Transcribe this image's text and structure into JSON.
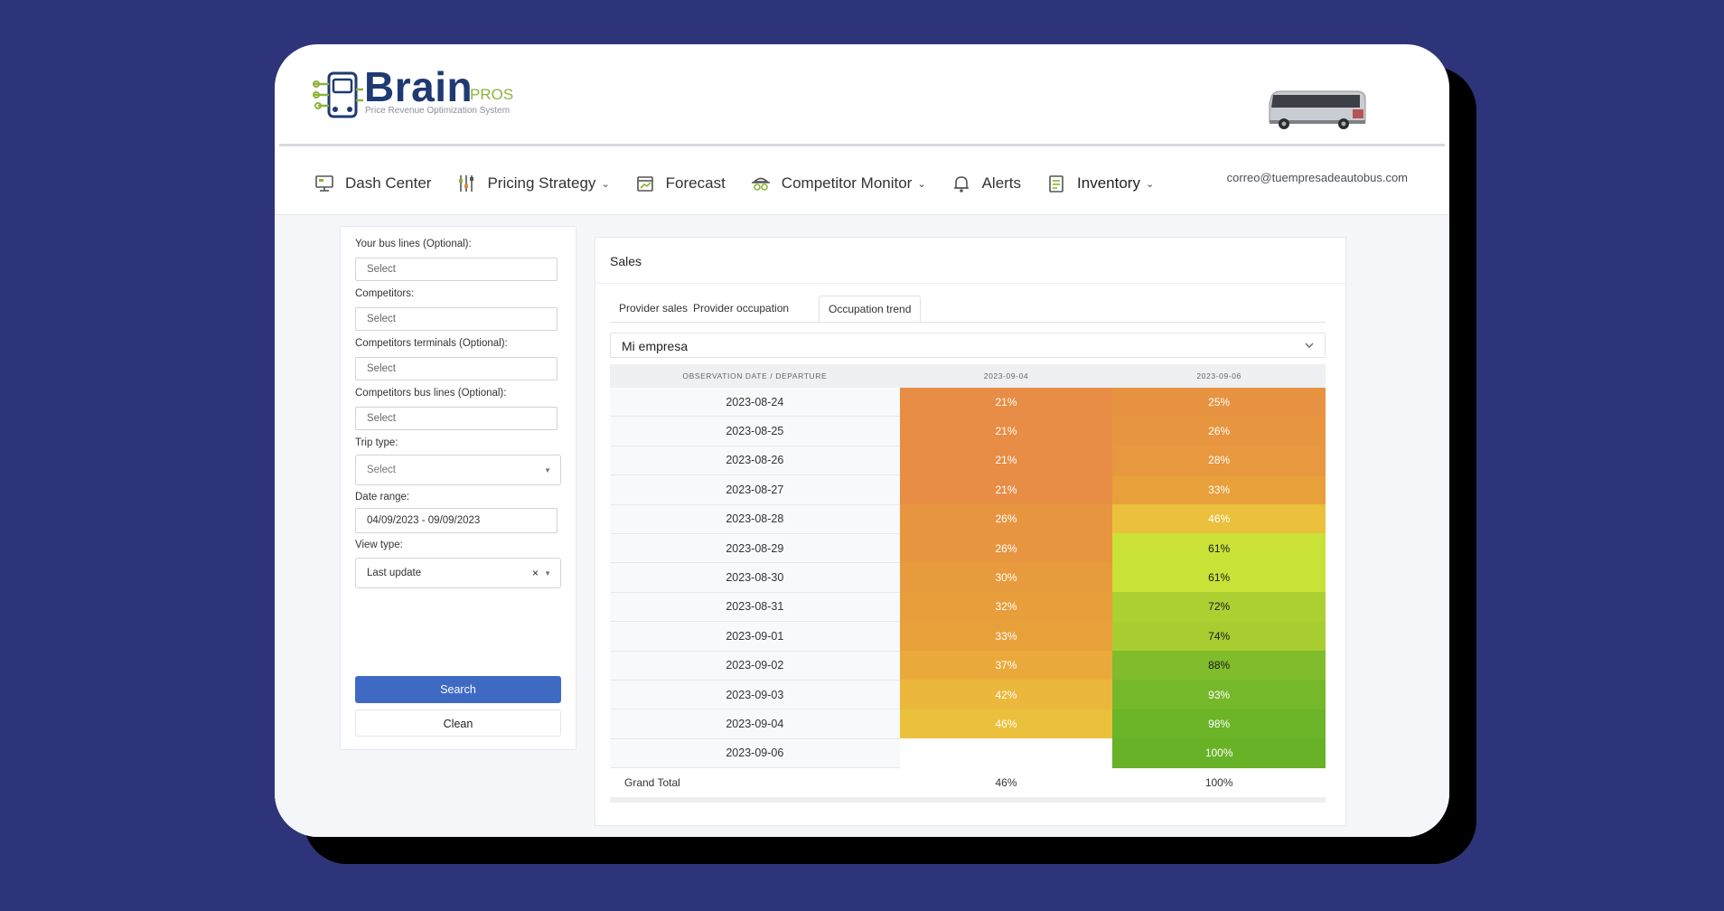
{
  "brand": {
    "name": "Brain",
    "suffix": "PROS",
    "tagline": "Price Revenue Optimization System"
  },
  "nav": {
    "items": [
      {
        "label": "Dash Center",
        "icon": "monitor-icon",
        "dropdown": false
      },
      {
        "label": "Pricing Strategy",
        "icon": "sliders-icon",
        "dropdown": true
      },
      {
        "label": "Forecast",
        "icon": "calendar-icon",
        "dropdown": false
      },
      {
        "label": "Competitor Monitor",
        "icon": "spy-icon",
        "dropdown": true
      },
      {
        "label": "Alerts",
        "icon": "bell-icon",
        "dropdown": false
      },
      {
        "label": "Inventory",
        "icon": "inventory-icon",
        "dropdown": true
      }
    ],
    "user_email": "correo@tuempresadeautobus.com"
  },
  "filters": {
    "bus_lines_label": "Your bus lines (Optional):",
    "bus_lines_placeholder": "Select",
    "competitors_label": "Competitors:",
    "competitors_placeholder": "Select",
    "comp_terminals_label": "Competitors terminals (Optional):",
    "comp_terminals_placeholder": "Select",
    "comp_bus_lines_label": "Competitors bus lines (Optional):",
    "comp_bus_lines_placeholder": "Select",
    "trip_type_label": "Trip type:",
    "trip_type_value": "Select",
    "date_range_label": "Date range:",
    "date_range_value": "04/09/2023 - 09/09/2023",
    "view_type_label": "View type:",
    "view_type_value": "Last update",
    "search_label": "Search",
    "clean_label": "Clean"
  },
  "sales": {
    "title": "Sales",
    "tabs": [
      "Provider sales",
      "Provider occupation",
      "Occupation trend"
    ],
    "active_tab": "Occupation trend",
    "company": "Mi empresa",
    "table": {
      "headers": [
        "OBSERVATION DATE / DEPARTURE",
        "2023-09-04",
        "2023-09-06"
      ],
      "rows": [
        {
          "date": "2023-08-24",
          "c1": "21%",
          "c2": "25%"
        },
        {
          "date": "2023-08-25",
          "c1": "21%",
          "c2": "26%"
        },
        {
          "date": "2023-08-26",
          "c1": "21%",
          "c2": "28%"
        },
        {
          "date": "2023-08-27",
          "c1": "21%",
          "c2": "33%"
        },
        {
          "date": "2023-08-28",
          "c1": "26%",
          "c2": "46%"
        },
        {
          "date": "2023-08-29",
          "c1": "26%",
          "c2": "61%"
        },
        {
          "date": "2023-08-30",
          "c1": "30%",
          "c2": "61%"
        },
        {
          "date": "2023-08-31",
          "c1": "32%",
          "c2": "72%"
        },
        {
          "date": "2023-09-01",
          "c1": "33%",
          "c2": "74%"
        },
        {
          "date": "2023-09-02",
          "c1": "37%",
          "c2": "88%"
        },
        {
          "date": "2023-09-03",
          "c1": "42%",
          "c2": "93%"
        },
        {
          "date": "2023-09-04",
          "c1": "46%",
          "c2": "98%"
        },
        {
          "date": "2023-09-06",
          "c1": "",
          "c2": "100%"
        }
      ],
      "total": {
        "label": "Grand Total",
        "c1": "46%",
        "c2": "100%"
      }
    }
  },
  "colors": {
    "background": "#2e3479",
    "accent": "#3f6ac4",
    "brand_blue": "#1f3a73",
    "brand_green": "#8cb33a"
  }
}
